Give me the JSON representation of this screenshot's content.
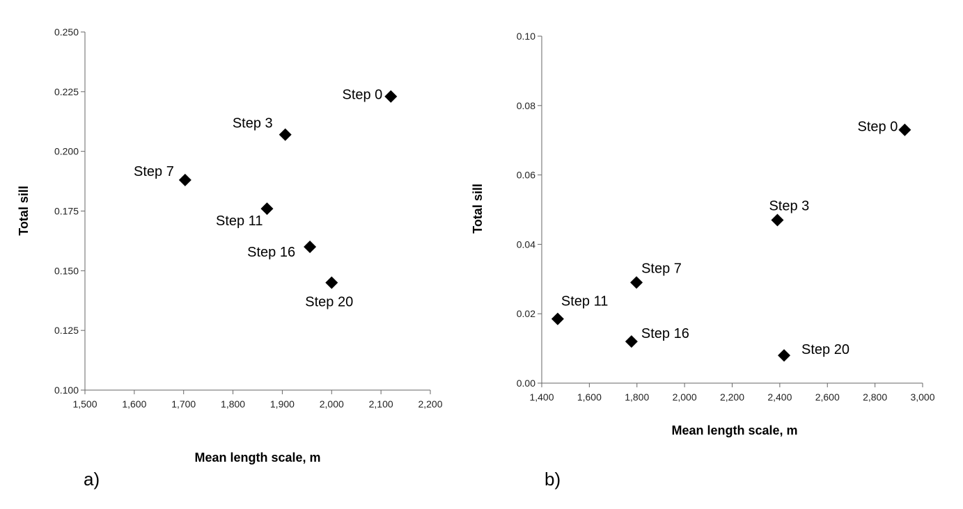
{
  "chart_data": [
    {
      "type": "scatter",
      "panel_label": "a)",
      "xlabel": "Mean length scale, m",
      "ylabel": "Total sill",
      "xlim": [
        1500,
        2200
      ],
      "ylim": [
        0.1,
        0.25
      ],
      "x_ticks": [
        "1,500",
        "1,600",
        "1,700",
        "1,800",
        "1,900",
        "2,000",
        "2,100",
        "2,200"
      ],
      "y_ticks": [
        "0.100",
        "0.125",
        "0.150",
        "0.175",
        "0.200",
        "0.225",
        "0.250"
      ],
      "grid": false,
      "marker": "diamond",
      "color": "#000000",
      "points": [
        {
          "label": "Step 0",
          "x": 2120,
          "y": 0.223
        },
        {
          "label": "Step 3",
          "x": 1906,
          "y": 0.207
        },
        {
          "label": "Step 7",
          "x": 1703,
          "y": 0.188
        },
        {
          "label": "Step 11",
          "x": 1869,
          "y": 0.176
        },
        {
          "label": "Step 16",
          "x": 1956,
          "y": 0.16
        },
        {
          "label": "Step 20",
          "x": 2000,
          "y": 0.145
        }
      ]
    },
    {
      "type": "scatter",
      "panel_label": "b)",
      "xlabel": "Mean length scale, m",
      "ylabel": "Total sill",
      "xlim": [
        1400,
        3000
      ],
      "ylim": [
        0.0,
        0.1
      ],
      "x_ticks": [
        "1,400",
        "1,600",
        "1,800",
        "2,000",
        "2,200",
        "2,400",
        "2,600",
        "2,800",
        "3,000"
      ],
      "y_ticks": [
        "0.00",
        "0.02",
        "0.04",
        "0.06",
        "0.08",
        "0.10"
      ],
      "grid": false,
      "marker": "diamond",
      "color": "#000000",
      "points": [
        {
          "label": "Step 0",
          "x": 2925,
          "y": 0.073
        },
        {
          "label": "Step 3",
          "x": 2390,
          "y": 0.047
        },
        {
          "label": "Step 7",
          "x": 1798,
          "y": 0.029
        },
        {
          "label": "Step 11",
          "x": 1467,
          "y": 0.0185
        },
        {
          "label": "Step 16",
          "x": 1777,
          "y": 0.012
        },
        {
          "label": "Step 20",
          "x": 2418,
          "y": 0.008
        }
      ]
    }
  ]
}
